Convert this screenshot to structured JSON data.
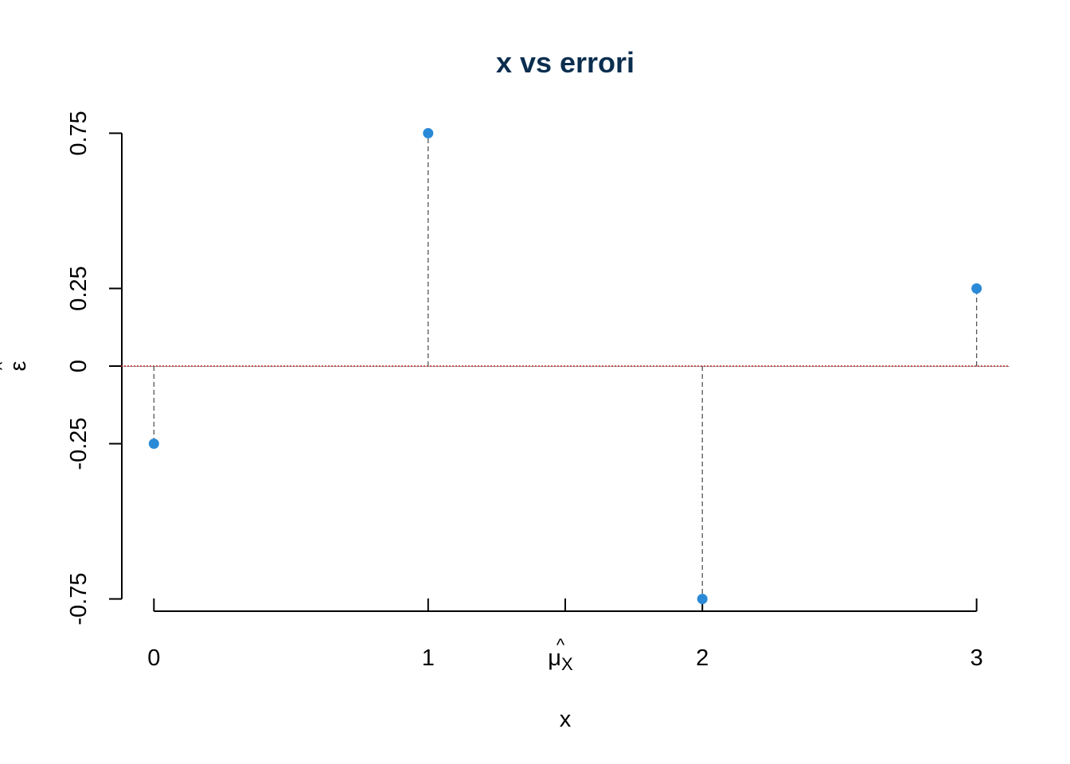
{
  "chart_data": {
    "type": "scatter",
    "title": "x vs errori",
    "xlabel": "x",
    "ylabel": "ε",
    "ylabel_hat": "^",
    "x_ticks": [
      {
        "value": 0,
        "label": "0"
      },
      {
        "value": 1,
        "label": "1"
      },
      {
        "value": 1.5,
        "label": "μ",
        "hat": "^",
        "subscript": "X"
      },
      {
        "value": 2,
        "label": "2"
      },
      {
        "value": 3,
        "label": "3"
      }
    ],
    "y_ticks": [
      {
        "value": 0.75,
        "label": "0.75"
      },
      {
        "value": 0.25,
        "label": "0.25"
      },
      {
        "value": 0,
        "label": "0"
      },
      {
        "value": -0.25,
        "label": "-0.25"
      },
      {
        "value": -0.75,
        "label": "-0.75"
      }
    ],
    "xlim": [
      -0.12,
      3.12
    ],
    "ylim": [
      -0.81,
      0.81
    ],
    "points": [
      {
        "x": 0,
        "y": -0.25
      },
      {
        "x": 1,
        "y": 0.75
      },
      {
        "x": 2,
        "y": -0.75
      },
      {
        "x": 3,
        "y": 0.25
      }
    ],
    "reference_line": {
      "y": 0,
      "style": "dotted"
    },
    "drop_lines": true,
    "grid": false,
    "colors": {
      "title": "#0b2e4f",
      "points": "#2a8ad8",
      "drop_lines": "#555555",
      "reference_line": "#b01818"
    }
  }
}
